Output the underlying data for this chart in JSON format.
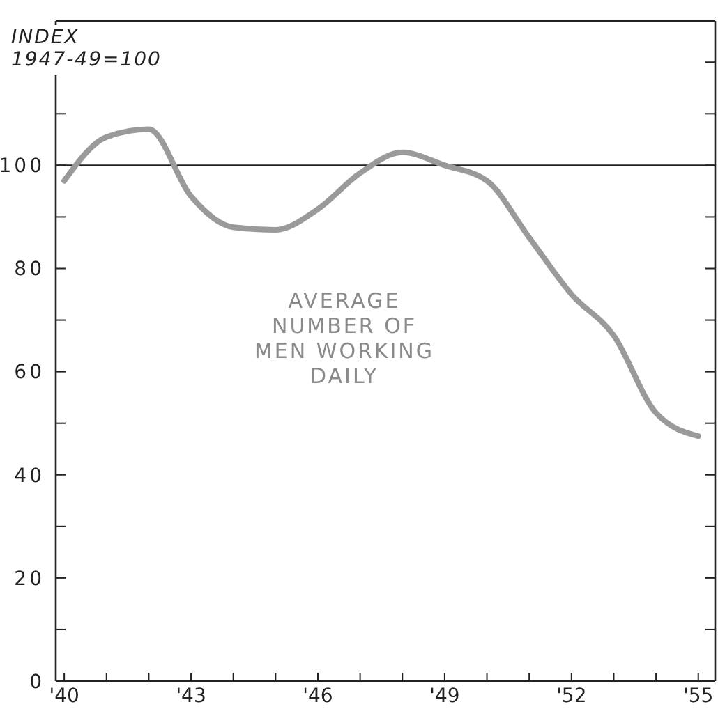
{
  "chart_data": {
    "type": "line",
    "ylabel": "INDEX\n1947-49=100",
    "x": [
      1940,
      1941,
      1942,
      1943,
      1944,
      1945,
      1946,
      1947,
      1948,
      1949,
      1950,
      1951,
      1952,
      1953,
      1954,
      1955
    ],
    "series": [
      {
        "color": "#9a9a9a",
        "values": [
          97,
          105.5,
          107,
          94,
          88,
          87.5,
          91.5,
          98.5,
          102.5,
          100,
          97,
          86,
          75,
          67,
          52,
          47.5
        ]
      }
    ],
    "xlim": [
      1939.8,
      1955.4
    ],
    "xticks": [
      {
        "value": 1940,
        "label": "'40"
      },
      {
        "value": 1941,
        "label": null
      },
      {
        "value": 1942,
        "label": null
      },
      {
        "value": 1943,
        "label": "'43"
      },
      {
        "value": 1944,
        "label": null
      },
      {
        "value": 1945,
        "label": null
      },
      {
        "value": 1946,
        "label": "'46"
      },
      {
        "value": 1947,
        "label": null
      },
      {
        "value": 1948,
        "label": null
      },
      {
        "value": 1949,
        "label": "'49"
      },
      {
        "value": 1950,
        "label": null
      },
      {
        "value": 1951,
        "label": null
      },
      {
        "value": 1952,
        "label": "'52"
      },
      {
        "value": 1953,
        "label": null
      },
      {
        "value": 1954,
        "label": null
      },
      {
        "value": 1955,
        "label": "'55"
      }
    ],
    "ylim": [
      0,
      128
    ],
    "yticks": [
      0,
      {
        "value": 10,
        "label": null
      },
      20,
      {
        "value": 30,
        "label": null
      },
      40,
      {
        "value": 50,
        "label": null
      },
      60,
      {
        "value": 70,
        "label": null
      },
      80,
      {
        "value": 90,
        "label": null
      },
      100,
      {
        "value": 110,
        "label": null
      },
      {
        "value": 120,
        "label": null
      }
    ],
    "ref_lines": [
      {
        "axis": "y",
        "value": 100,
        "color": "#222222"
      }
    ],
    "annotations": [
      "AVERAGE\nNUMBER OF\nMEN WORKING\nDAILY"
    ],
    "grid": false,
    "marker": "none",
    "line_style": "solid"
  }
}
